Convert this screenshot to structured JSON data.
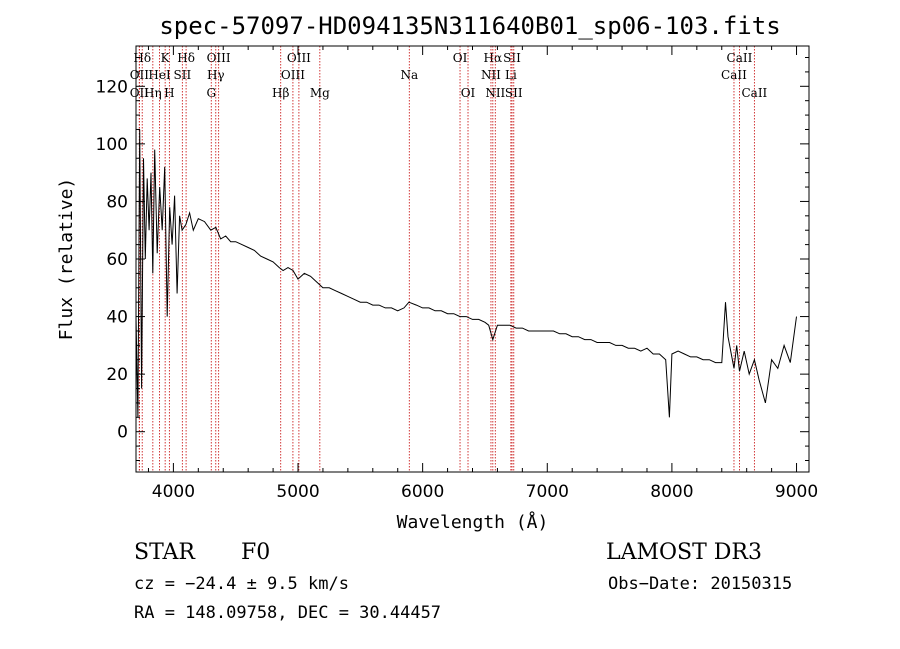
{
  "chart_data": {
    "type": "line",
    "title": "spec-57097-HD094135N311640B01_sp06-103.fits",
    "xlabel": "Wavelength (Å)",
    "ylabel": "Flux (relative)",
    "xlim": [
      3700,
      9100
    ],
    "ylim": [
      -14,
      134
    ],
    "xticks": [
      "4000",
      "5000",
      "6000",
      "7000",
      "8000",
      "9000"
    ],
    "xtick_values": [
      4000,
      5000,
      6000,
      7000,
      8000,
      9000
    ],
    "yticks": [
      "0",
      "20",
      "40",
      "60",
      "80",
      "100",
      "120"
    ],
    "ytick_values": [
      0,
      20,
      40,
      60,
      80,
      100,
      120
    ],
    "series": [
      {
        "name": "flux",
        "x": [
          3700,
          3715,
          3730,
          3745,
          3760,
          3775,
          3790,
          3805,
          3820,
          3835,
          3850,
          3870,
          3890,
          3910,
          3930,
          3950,
          3970,
          3990,
          4010,
          4030,
          4050,
          4070,
          4100,
          4130,
          4160,
          4200,
          4250,
          4300,
          4340,
          4380,
          4420,
          4460,
          4500,
          4550,
          4600,
          4650,
          4700,
          4750,
          4800,
          4850,
          4880,
          4920,
          4960,
          5000,
          5050,
          5100,
          5150,
          5200,
          5250,
          5300,
          5350,
          5400,
          5450,
          5500,
          5550,
          5600,
          5650,
          5700,
          5750,
          5800,
          5850,
          5890,
          5950,
          6000,
          6050,
          6100,
          6150,
          6200,
          6250,
          6300,
          6350,
          6400,
          6450,
          6500,
          6530,
          6563,
          6600,
          6650,
          6700,
          6750,
          6800,
          6850,
          6900,
          6950,
          7000,
          7050,
          7100,
          7150,
          7200,
          7250,
          7300,
          7350,
          7400,
          7450,
          7500,
          7550,
          7600,
          7650,
          7700,
          7750,
          7800,
          7850,
          7900,
          7950,
          7980,
          8000,
          8050,
          8100,
          8150,
          8200,
          8250,
          8300,
          8350,
          8400,
          8430,
          8450,
          8498,
          8520,
          8542,
          8580,
          8620,
          8662,
          8700,
          8750,
          8800,
          8850,
          8900,
          8950,
          9000
        ],
        "values": [
          40,
          5,
          105,
          15,
          95,
          60,
          88,
          70,
          90,
          55,
          98,
          62,
          85,
          70,
          92,
          40,
          78,
          65,
          82,
          48,
          75,
          70,
          72,
          76,
          70,
          74,
          73,
          70,
          71,
          67,
          68,
          66,
          66,
          65,
          64,
          63,
          61,
          60,
          59,
          57,
          56,
          57,
          56,
          53,
          55,
          54,
          52,
          50,
          50,
          49,
          48,
          47,
          46,
          45,
          45,
          44,
          44,
          43,
          43,
          42,
          43,
          45,
          44,
          43,
          43,
          42,
          42,
          41,
          41,
          40,
          40,
          39,
          39,
          38,
          37,
          32,
          37,
          37,
          37,
          36,
          36,
          35,
          35,
          35,
          35,
          35,
          34,
          34,
          33,
          33,
          32,
          32,
          31,
          31,
          31,
          30,
          30,
          29,
          29,
          28,
          29,
          27,
          27,
          25,
          5,
          27,
          28,
          27,
          26,
          26,
          25,
          25,
          24,
          24,
          45,
          33,
          22,
          30,
          21,
          28,
          20,
          25,
          18,
          10,
          25,
          22,
          30,
          24,
          40
        ]
      }
    ],
    "lines_label_fill": "#000000",
    "emission_lines": [
      {
        "label": "Hδ",
        "wavelength": 3750,
        "row": 1
      },
      {
        "label": "K",
        "wavelength": 3934,
        "row": 1
      },
      {
        "label": "Hδ",
        "wavelength": 4102,
        "row": 1
      },
      {
        "label": "OIII",
        "wavelength": 4363,
        "row": 1
      },
      {
        "label": "OIII",
        "wavelength": 5007,
        "row": 1
      },
      {
        "label": "OI",
        "wavelength": 6300,
        "row": 1
      },
      {
        "label": "Hα",
        "wavelength": 6563,
        "row": 1
      },
      {
        "label": "SII",
        "wavelength": 6717,
        "row": 1
      },
      {
        "label": "CaII",
        "wavelength": 8542,
        "row": 1
      },
      {
        "label": "OII",
        "wavelength": 3727,
        "row": 2
      },
      {
        "label": "HeI",
        "wavelength": 3889,
        "row": 2
      },
      {
        "label": "SII",
        "wavelength": 4072,
        "row": 2
      },
      {
        "label": "Hγ",
        "wavelength": 4340,
        "row": 2
      },
      {
        "label": "OIII",
        "wavelength": 4959,
        "row": 2
      },
      {
        "label": "Na",
        "wavelength": 5893,
        "row": 2
      },
      {
        "label": "NII",
        "wavelength": 6548,
        "row": 2
      },
      {
        "label": "Li",
        "wavelength": 6708,
        "row": 2
      },
      {
        "label": "CaII",
        "wavelength": 8498,
        "row": 2
      },
      {
        "label": "OII",
        "wavelength": 3727,
        "row": 3
      },
      {
        "label": "Hη",
        "wavelength": 3835,
        "row": 3
      },
      {
        "label": "H",
        "wavelength": 3968,
        "row": 3
      },
      {
        "label": "G",
        "wavelength": 4304,
        "row": 3
      },
      {
        "label": "Hβ",
        "wavelength": 4861,
        "row": 3
      },
      {
        "label": "Mg",
        "wavelength": 5175,
        "row": 3
      },
      {
        "label": "OI",
        "wavelength": 6364,
        "row": 3
      },
      {
        "label": "NII",
        "wavelength": 6583,
        "row": 3
      },
      {
        "label": "SII",
        "wavelength": 6731,
        "row": 3
      },
      {
        "label": "CaII",
        "wavelength": 8662,
        "row": 3
      }
    ],
    "line_color": "#000000",
    "marker_color": "#cc2222"
  },
  "info": {
    "object_class": "STAR",
    "subclass": "F0",
    "survey": "LAMOST DR3",
    "redshift": "cz = −24.4 ± 9.5 km/s",
    "obs_date": "Obs−Date: 20150315",
    "coords": "RA = 148.09758, DEC =  30.44457"
  }
}
